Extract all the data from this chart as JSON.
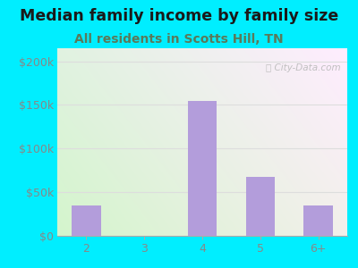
{
  "title": "Median family income by family size",
  "subtitle": "All residents in Scotts Hill, TN",
  "categories": [
    "2",
    "3",
    "4",
    "5",
    "6+"
  ],
  "values": [
    35000,
    0,
    155000,
    68000,
    35000
  ],
  "bar_color": "#b39ddb",
  "title_fontsize": 12.5,
  "subtitle_fontsize": 10,
  "subtitle_color": "#5a7a5a",
  "title_color": "#1a1a1a",
  "background_outer": "#00eeff",
  "yticks": [
    0,
    50000,
    100000,
    150000,
    200000
  ],
  "ytick_labels": [
    "$0",
    "$50k",
    "$100k",
    "$150k",
    "$200k"
  ],
  "ylim": [
    0,
    215000
  ],
  "tick_color": "#888888",
  "watermark_color": "#bbbbbb",
  "grid_color": "#dddddd"
}
